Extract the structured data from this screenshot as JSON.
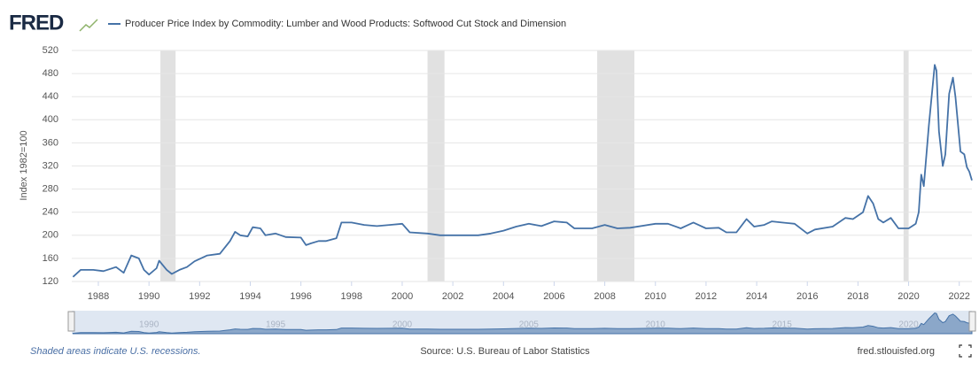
{
  "logo": "FRED",
  "chart_data": {
    "type": "line",
    "y_label": "Index 1982=100",
    "x": [
      1987.0,
      1987.3,
      1987.8,
      1988.2,
      1988.7,
      1989.0,
      1989.3,
      1989.6,
      1989.8,
      1990.0,
      1990.3,
      1990.4,
      1990.7,
      1990.9,
      1991.2,
      1991.5,
      1991.8,
      1992.3,
      1992.8,
      1993.2,
      1993.4,
      1993.6,
      1993.9,
      1994.1,
      1994.4,
      1994.6,
      1995.0,
      1995.4,
      1996.0,
      1996.2,
      1996.4,
      1996.7,
      1997.0,
      1997.4,
      1997.6,
      1998.0,
      1998.5,
      1999.0,
      1999.5,
      2000.0,
      2000.3,
      2001.0,
      2001.5,
      2003.0,
      2003.5,
      2004.0,
      2004.5,
      2005.0,
      2005.5,
      2006.0,
      2006.5,
      2006.8,
      2007.5,
      2008.0,
      2008.5,
      2009.0,
      2010.0,
      2010.5,
      2011.0,
      2011.5,
      2012.0,
      2012.5,
      2012.8,
      2013.2,
      2013.6,
      2013.9,
      2014.3,
      2014.6,
      2015.0,
      2015.5,
      2016.0,
      2016.3,
      2017.0,
      2017.5,
      2017.8,
      2018.2,
      2018.4,
      2018.6,
      2018.8,
      2019.0,
      2019.3,
      2019.6,
      2020.0,
      2020.28,
      2020.4,
      2020.5,
      2020.6,
      2020.8,
      2021.03,
      2021.1,
      2021.2,
      2021.35,
      2021.45,
      2021.6,
      2021.75,
      2021.85,
      2022.05,
      2022.2,
      2022.3,
      2022.4,
      2022.5
    ],
    "series": [
      {
        "name": "Producer Price Index by Commodity: Lumber and Wood Products: Softwood Cut Stock and Dimension",
        "color": "#4572a7",
        "values": [
          128,
          140,
          140,
          138,
          145,
          135,
          165,
          160,
          140,
          132,
          143,
          156,
          140,
          133,
          140,
          145,
          155,
          165,
          168,
          190,
          206,
          200,
          198,
          214,
          212,
          200,
          203,
          197,
          196,
          183,
          186,
          190,
          190,
          195,
          222,
          222,
          218,
          216,
          218,
          220,
          205,
          203,
          200,
          200,
          203,
          208,
          215,
          220,
          216,
          224,
          222,
          212,
          212,
          218,
          212,
          213,
          220,
          220,
          212,
          222,
          212,
          213,
          205,
          205,
          228,
          215,
          218,
          224,
          222,
          220,
          203,
          210,
          215,
          230,
          228,
          240,
          268,
          255,
          228,
          222,
          230,
          212,
          212,
          220,
          240,
          305,
          285,
          390,
          495,
          485,
          380,
          320,
          340,
          445,
          473,
          440,
          345,
          340,
          318,
          310,
          295
        ]
      }
    ],
    "xlim": [
      1986.95,
      2022.5
    ],
    "xticks": [
      1988,
      1990,
      1992,
      1994,
      1996,
      1998,
      2000,
      2002,
      2004,
      2006,
      2008,
      2010,
      2012,
      2014,
      2016,
      2018,
      2020,
      2022
    ],
    "ylim": [
      120,
      520
    ],
    "yticks": [
      120,
      160,
      200,
      240,
      280,
      320,
      360,
      400,
      440,
      480,
      520
    ],
    "grid": true,
    "recessions": [
      [
        1990.45,
        1991.05
      ],
      [
        2001.0,
        2001.67
      ],
      [
        2007.7,
        2009.17
      ],
      [
        2019.8,
        2020.0
      ]
    ],
    "navigator_ticks": [
      1990,
      1995,
      2000,
      2005,
      2010,
      2015,
      2020
    ]
  },
  "footer": {
    "note": "Shaded areas indicate U.S. recessions.",
    "source": "Source: U.S. Bureau of Labor Statistics",
    "site": "fred.stlouisfed.org"
  }
}
